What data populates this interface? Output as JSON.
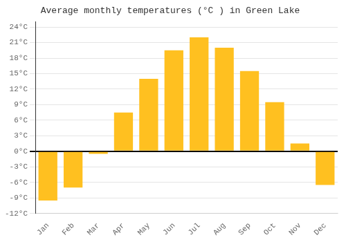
{
  "chart_data": {
    "type": "bar",
    "title": "Average monthly temperatures (°C ) in Green Lake",
    "categories": [
      "Jan",
      "Feb",
      "Mar",
      "Apr",
      "May",
      "Jun",
      "Jul",
      "Aug",
      "Sep",
      "Oct",
      "Nov",
      "Dec"
    ],
    "values": [
      -9.5,
      -7.0,
      -0.5,
      7.5,
      14.0,
      19.5,
      22.0,
      20.0,
      15.5,
      9.5,
      1.5,
      -6.5
    ],
    "color": "#FFC020",
    "ylim": [
      -12,
      25
    ],
    "yticks": [
      {
        "value": -12,
        "label": "-12°C"
      },
      {
        "value": -9,
        "label": "-9°C"
      },
      {
        "value": -6,
        "label": "-6°C"
      },
      {
        "value": -3,
        "label": "-3°C"
      },
      {
        "value": 0,
        "label": "0°C"
      },
      {
        "value": 3,
        "label": "3°C"
      },
      {
        "value": 6,
        "label": "6°C"
      },
      {
        "value": 9,
        "label": "9°C"
      },
      {
        "value": 12,
        "label": "12°C"
      },
      {
        "value": 15,
        "label": "15°C"
      },
      {
        "value": 18,
        "label": "18°C"
      },
      {
        "value": 21,
        "label": "21°C"
      },
      {
        "value": 24,
        "label": "24°C"
      }
    ],
    "grid": true
  }
}
